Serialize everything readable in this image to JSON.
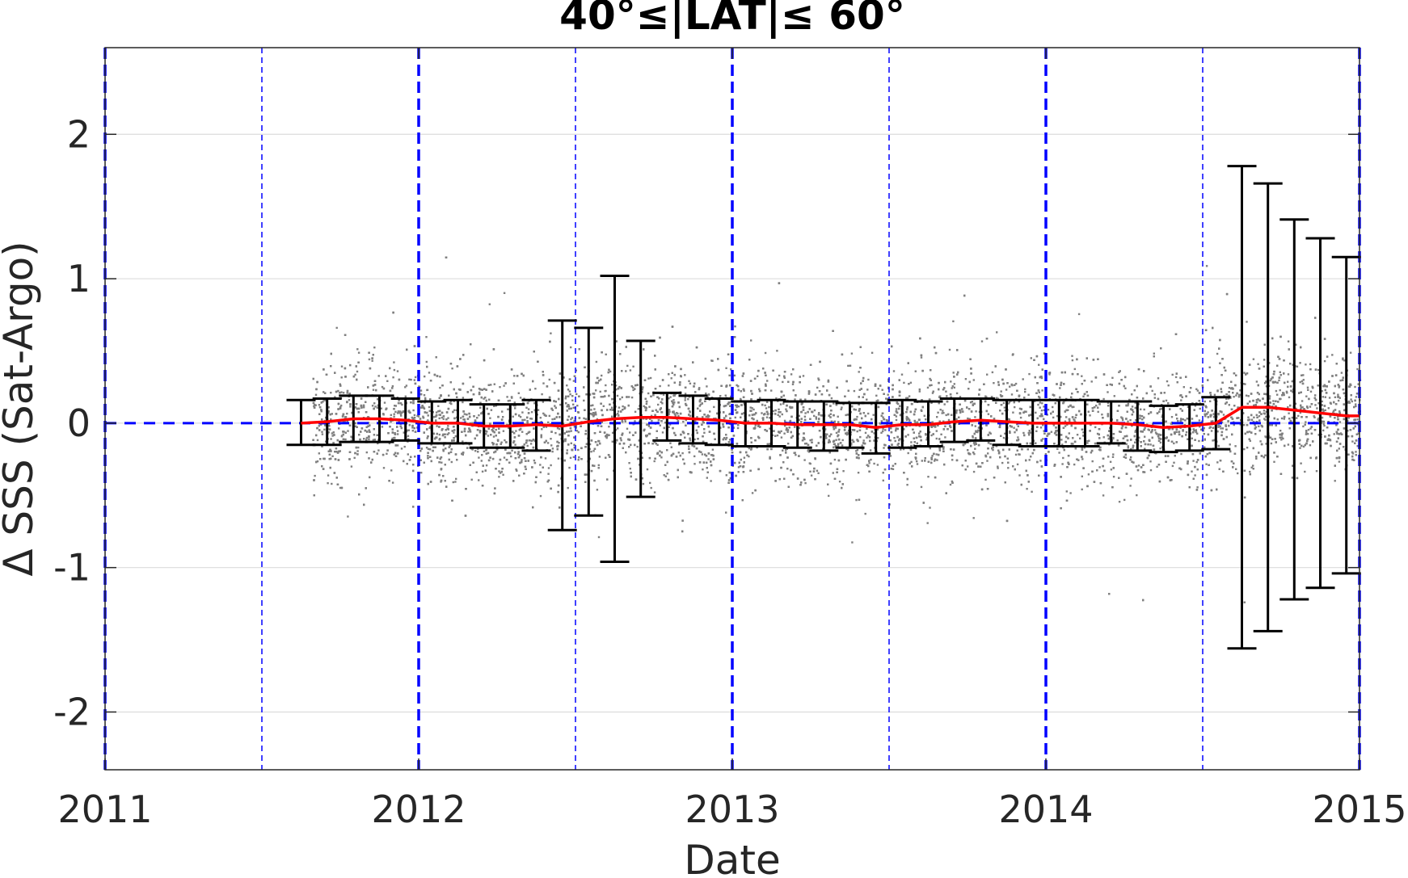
{
  "chart_data": {
    "type": "scatter",
    "title": "40°≤|LAT|≤ 60°",
    "xlabel": "Date",
    "ylabel": "Δ SSS (Sat-Argo)",
    "xlim": [
      2011,
      2015
    ],
    "ylim": [
      -2.4,
      2.6
    ],
    "x_ticks": [
      2011,
      2012,
      2013,
      2014,
      2015
    ],
    "x_tick_labels": [
      "2011",
      "2012",
      "2013",
      "2014",
      "2015"
    ],
    "y_ticks": [
      -2,
      -1,
      0,
      1,
      2
    ],
    "y_tick_labels": [
      "-2",
      "-1",
      "0",
      "1",
      "2"
    ],
    "grid": "horizontal",
    "year_lines": [
      2011,
      2012,
      2013,
      2014,
      2015
    ],
    "half_year_lines": [
      2011.5,
      2012.5,
      2013.5,
      2014.5
    ],
    "zero_line": 0,
    "scatter": {
      "description_color": "#808080",
      "x_range": [
        2011.66,
        2015.0
      ],
      "typical_std": 0.2
    },
    "series": [
      {
        "type": "errorbar",
        "color": "#000000",
        "x": [
          2011.625,
          2011.708,
          2011.792,
          2011.875,
          2011.958,
          2012.042,
          2012.125,
          2012.208,
          2012.292,
          2012.375,
          2012.458,
          2012.542,
          2012.625,
          2012.708,
          2012.792,
          2012.875,
          2012.958,
          2013.042,
          2013.125,
          2013.208,
          2013.292,
          2013.375,
          2013.458,
          2013.542,
          2013.625,
          2013.708,
          2013.792,
          2013.875,
          2013.958,
          2014.042,
          2014.125,
          2014.208,
          2014.292,
          2014.375,
          2014.458,
          2014.542,
          2014.625,
          2014.708,
          2014.792,
          2014.875,
          2014.958
        ],
        "lower": [
          -0.15,
          -0.15,
          -0.13,
          -0.13,
          -0.12,
          -0.14,
          -0.14,
          -0.17,
          -0.17,
          -0.19,
          -0.74,
          -0.64,
          -0.96,
          -0.51,
          -0.12,
          -0.14,
          -0.15,
          -0.16,
          -0.16,
          -0.17,
          -0.19,
          -0.17,
          -0.21,
          -0.17,
          -0.16,
          -0.13,
          -0.12,
          -0.15,
          -0.16,
          -0.16,
          -0.16,
          -0.14,
          -0.19,
          -0.2,
          -0.19,
          -0.18,
          -1.56,
          -1.44,
          -1.22,
          -1.14,
          -1.04
        ],
        "upper": [
          0.16,
          0.17,
          0.19,
          0.19,
          0.17,
          0.15,
          0.16,
          0.13,
          0.13,
          0.16,
          0.71,
          0.66,
          1.02,
          0.57,
          0.21,
          0.19,
          0.17,
          0.15,
          0.16,
          0.15,
          0.15,
          0.14,
          0.14,
          0.16,
          0.15,
          0.17,
          0.17,
          0.16,
          0.16,
          0.16,
          0.16,
          0.15,
          0.15,
          0.12,
          0.13,
          0.18,
          1.78,
          1.66,
          1.41,
          1.28,
          1.15
        ]
      },
      {
        "type": "line",
        "color": "#ff0000",
        "x": [
          2011.625,
          2011.708,
          2011.792,
          2011.875,
          2011.958,
          2012.042,
          2012.125,
          2012.208,
          2012.292,
          2012.375,
          2012.458,
          2012.542,
          2012.625,
          2012.708,
          2012.792,
          2012.875,
          2012.958,
          2013.042,
          2013.125,
          2013.208,
          2013.292,
          2013.375,
          2013.458,
          2013.542,
          2013.625,
          2013.708,
          2013.792,
          2013.875,
          2013.958,
          2014.042,
          2014.125,
          2014.208,
          2014.292,
          2014.375,
          2014.458,
          2014.542,
          2014.625,
          2014.708,
          2014.792,
          2014.875,
          2014.958,
          2015.0
        ],
        "y": [
          0.0,
          0.01,
          0.03,
          0.03,
          0.02,
          0.0,
          0.0,
          -0.02,
          -0.02,
          -0.01,
          -0.02,
          0.01,
          0.03,
          0.04,
          0.04,
          0.03,
          0.02,
          0.0,
          0.0,
          -0.01,
          -0.01,
          -0.01,
          -0.03,
          -0.01,
          -0.01,
          0.01,
          0.02,
          0.01,
          0.0,
          0.0,
          0.0,
          0.0,
          -0.01,
          -0.03,
          -0.02,
          0.0,
          0.11,
          0.11,
          0.09,
          0.07,
          0.05,
          0.05
        ]
      }
    ]
  }
}
